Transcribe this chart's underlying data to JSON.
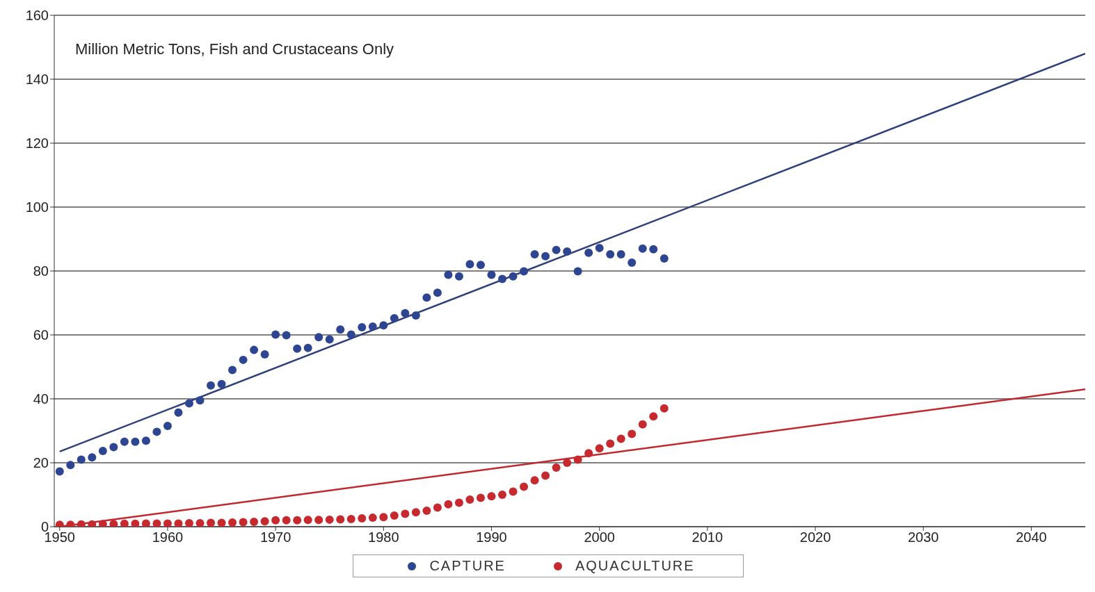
{
  "chart_data": {
    "type": "scatter",
    "annotations": [
      "Million Metric Tons, Fish and Crustaceans Only"
    ],
    "xlim": [
      1949.5,
      2045
    ],
    "xticks": [
      1950,
      1960,
      1970,
      1980,
      1990,
      2000,
      2010,
      2020,
      2030,
      2040
    ],
    "ylim": [
      0,
      160
    ],
    "yticks": [
      0,
      20,
      40,
      60,
      80,
      100,
      120,
      140,
      160
    ],
    "grid": "y",
    "legend": "bottom",
    "marker": "circle",
    "series": [
      {
        "type": "line",
        "marker": "none",
        "color": "#2e3f7c",
        "x": [
          1950,
          2045
        ],
        "values": [
          23.5,
          148
        ]
      },
      {
        "type": "line",
        "marker": "none",
        "color": "#c0282d",
        "x": [
          1950,
          2045
        ],
        "values": [
          0,
          43
        ]
      },
      {
        "name": "CAPTURE",
        "color": "#2e4591",
        "x": [
          1950,
          1951,
          1952,
          1953,
          1954,
          1955,
          1956,
          1957,
          1958,
          1959,
          1960,
          1961,
          1962,
          1963,
          1964,
          1965,
          1966,
          1967,
          1968,
          1969,
          1970,
          1971,
          1972,
          1973,
          1974,
          1975,
          1976,
          1977,
          1978,
          1979,
          1980,
          1981,
          1982,
          1983,
          1984,
          1985,
          1986,
          1987,
          1988,
          1989,
          1990,
          1991,
          1992,
          1993,
          1994,
          1995,
          1996,
          1997,
          1998,
          1999,
          2000,
          2001,
          2002,
          2003,
          2004,
          2005,
          2006
        ],
        "values": [
          17.3,
          19.3,
          21,
          21.7,
          23.7,
          24.9,
          26.6,
          26.6,
          26.9,
          29.7,
          31.5,
          35.7,
          38.6,
          39.5,
          44.2,
          44.6,
          49,
          52.2,
          55.3,
          53.9,
          60.1,
          59.9,
          55.7,
          55.9,
          59.3,
          58.6,
          61.7,
          60.1,
          62.4,
          62.6,
          63,
          65.2,
          66.8,
          66.1,
          71.7,
          73.2,
          78.8,
          78.3,
          82.1,
          81.9,
          78.8,
          77.5,
          78.3,
          79.9,
          85.2,
          84.6,
          86.6,
          86.1,
          79.9,
          85.7,
          87.2,
          85.2,
          85.2,
          82.6,
          87,
          86.8,
          83.9
        ]
      },
      {
        "name": "AQUACULTURE",
        "color": "#c62a2f",
        "x": [
          1950,
          1951,
          1952,
          1953,
          1954,
          1955,
          1956,
          1957,
          1958,
          1959,
          1960,
          1961,
          1962,
          1963,
          1964,
          1965,
          1966,
          1967,
          1968,
          1969,
          1970,
          1971,
          1972,
          1973,
          1974,
          1975,
          1976,
          1977,
          1978,
          1979,
          1980,
          1981,
          1982,
          1983,
          1984,
          1985,
          1986,
          1987,
          1988,
          1989,
          1990,
          1991,
          1992,
          1993,
          1994,
          1995,
          1996,
          1997,
          1998,
          1999,
          2000,
          2001,
          2002,
          2003,
          2004,
          2005,
          2006
        ],
        "values": [
          0.6,
          0.6,
          0.7,
          0.7,
          0.8,
          0.8,
          0.9,
          0.9,
          1,
          1,
          1,
          1,
          1.1,
          1.1,
          1.2,
          1.2,
          1.3,
          1.4,
          1.5,
          1.7,
          2,
          2,
          2,
          2.1,
          2.1,
          2.2,
          2.3,
          2.4,
          2.6,
          2.8,
          3,
          3.5,
          4,
          4.5,
          5,
          6,
          7,
          7.5,
          8.5,
          9,
          9.5,
          10,
          11,
          12.5,
          14.5,
          16,
          18.5,
          20,
          21,
          23,
          24.5,
          26,
          27.5,
          29,
          32,
          34.5,
          37
        ]
      }
    ]
  }
}
